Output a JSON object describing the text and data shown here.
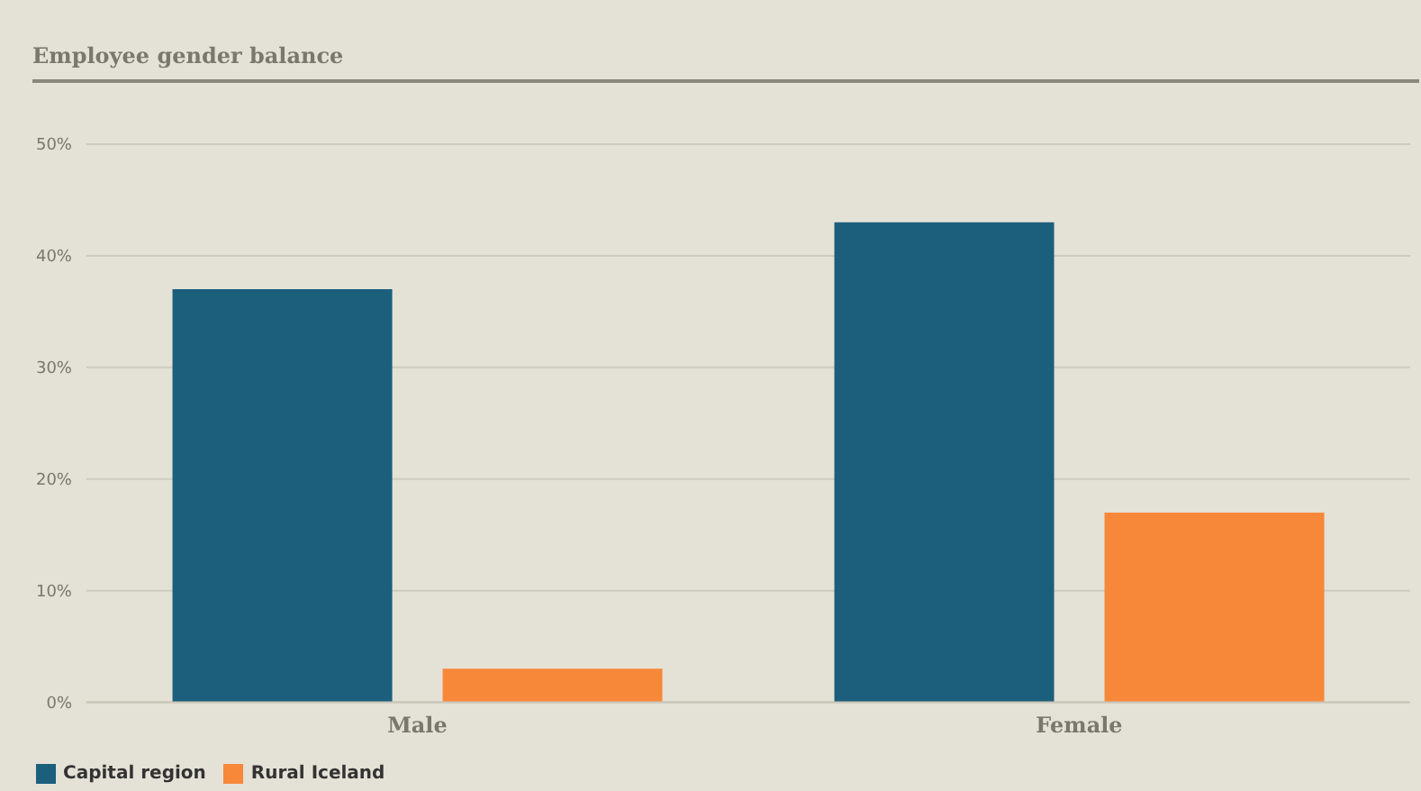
{
  "chart_data": {
    "type": "bar",
    "title": "Employee gender balance",
    "categories": [
      "Male",
      "Female"
    ],
    "series": [
      {
        "name": "Capital region",
        "color": "#1b5f7c",
        "values": [
          37,
          43
        ]
      },
      {
        "name": "Rural Iceland",
        "color": "#f7883a",
        "values": [
          3,
          17
        ]
      }
    ],
    "ylim": [
      0,
      50
    ],
    "yticks": [
      {
        "value": 0,
        "label": "0%"
      },
      {
        "value": 10,
        "label": "10%"
      },
      {
        "value": 20,
        "label": "20%"
      },
      {
        "value": 30,
        "label": "30%"
      },
      {
        "value": 40,
        "label": "40%"
      },
      {
        "value": 50,
        "label": "50%"
      }
    ],
    "grid": "y",
    "legend": "bottom left"
  }
}
